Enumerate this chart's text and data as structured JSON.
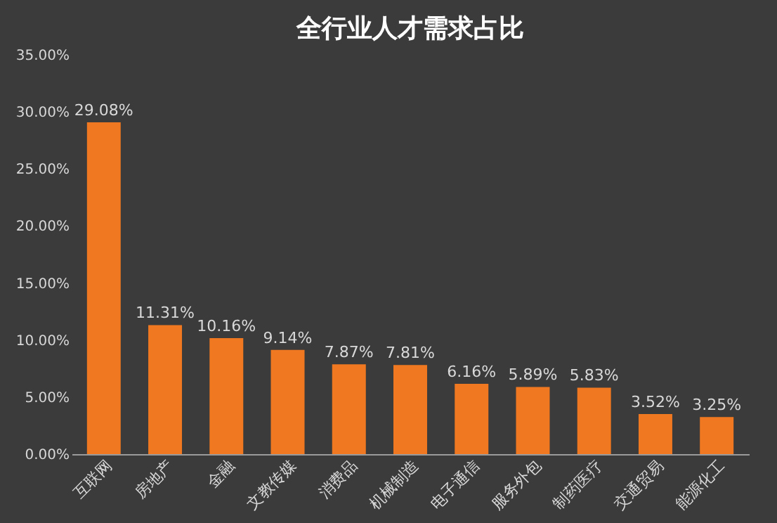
{
  "chart_data": {
    "type": "bar",
    "title": "全行业人才需求占比",
    "categories": [
      "互联网",
      "房地产",
      "金融",
      "文教传媒",
      "消费品",
      "机械制造",
      "电子通信",
      "服务外包",
      "制药医疗",
      "交通贸易",
      "能源化工"
    ],
    "values": [
      29.08,
      11.31,
      10.16,
      9.14,
      7.87,
      7.81,
      6.16,
      5.89,
      5.83,
      3.52,
      3.25
    ],
    "value_labels": [
      "29.08%",
      "11.31%",
      "10.16%",
      "9.14%",
      "7.87%",
      "7.81%",
      "6.16%",
      "5.89%",
      "5.83%",
      "3.52%",
      "3.25%"
    ],
    "color": "#f07820",
    "ylim": [
      0,
      35
    ],
    "yticks": [
      {
        "value": 0,
        "label": "0.00%"
      },
      {
        "value": 5,
        "label": "5.00%"
      },
      {
        "value": 10,
        "label": "10.00%"
      },
      {
        "value": 15,
        "label": "15.00%"
      },
      {
        "value": 20,
        "label": "20.00%"
      },
      {
        "value": 25,
        "label": "25.00%"
      },
      {
        "value": 30,
        "label": "30.00%"
      },
      {
        "value": 35,
        "label": "35.00%"
      }
    ],
    "grid": false
  }
}
